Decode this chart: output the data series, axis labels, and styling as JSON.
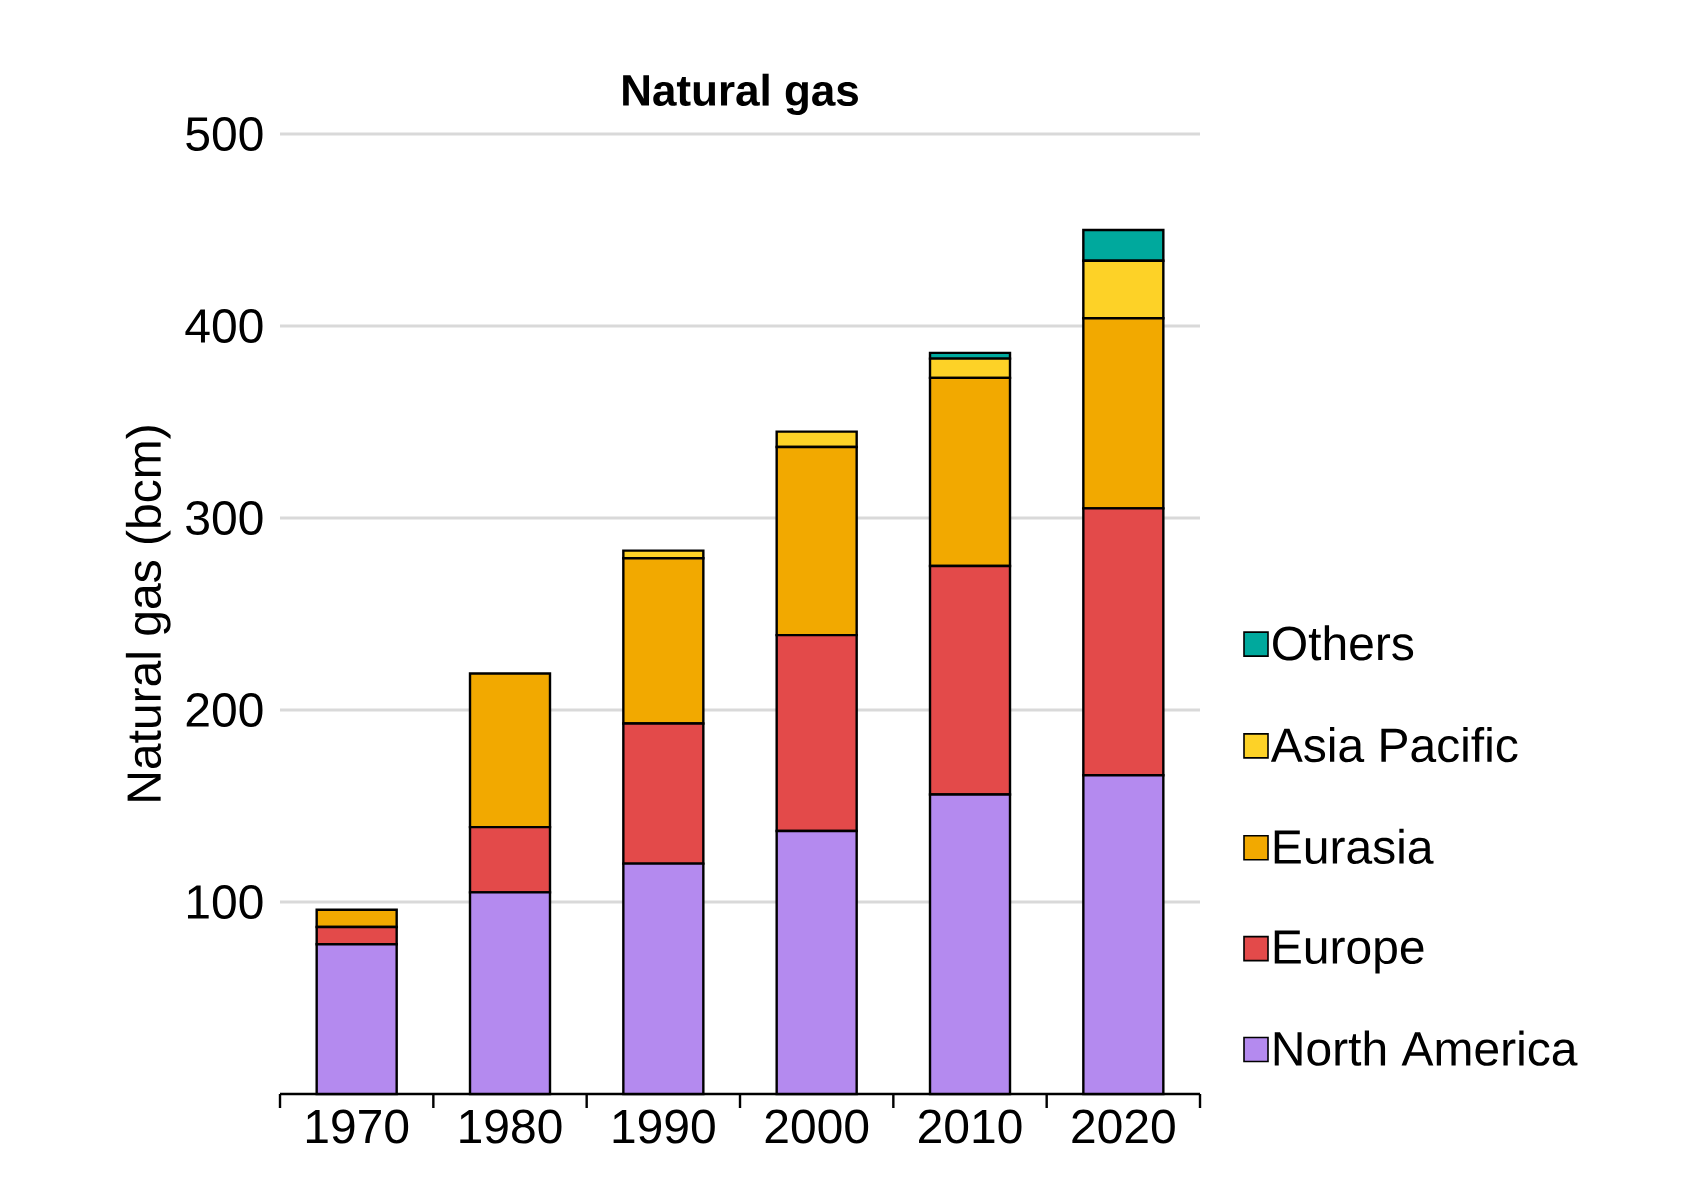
{
  "chart_data": {
    "type": "bar",
    "stacked": true,
    "title": "Natural gas",
    "ylabel": "Natural gas (bcm)",
    "categories": [
      "1970",
      "1980",
      "1990",
      "2000",
      "2010",
      "2020"
    ],
    "series": [
      {
        "name": "North America",
        "color": "#b48aef",
        "values": [
          78,
          105,
          120,
          137,
          156,
          166
        ]
      },
      {
        "name": "Europe",
        "color": "#e34a4a",
        "values": [
          9,
          34,
          73,
          102,
          119,
          139
        ]
      },
      {
        "name": "Eurasia",
        "color": "#f2a900",
        "values": [
          9,
          80,
          86,
          98,
          98,
          99
        ]
      },
      {
        "name": "Asia Pacific",
        "color": "#fdd227",
        "values": [
          0,
          0,
          4,
          8,
          10,
          30
        ]
      },
      {
        "name": "Others",
        "color": "#00a99d",
        "values": [
          0,
          0,
          0,
          0,
          3,
          16
        ]
      }
    ],
    "ylim": [
      0,
      500
    ],
    "yticks": [
      100,
      200,
      300,
      400,
      500
    ],
    "grid": "y",
    "legend": "right"
  }
}
